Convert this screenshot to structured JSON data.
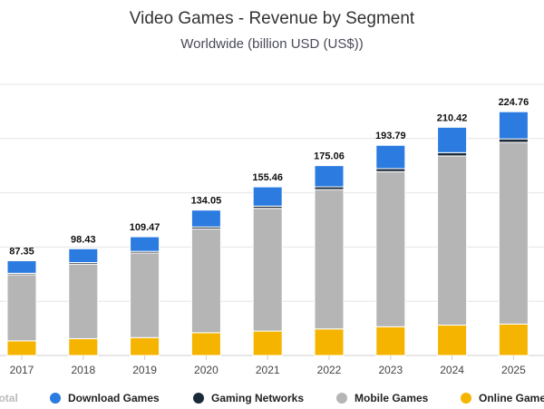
{
  "chart_data": {
    "type": "bar",
    "stacked": true,
    "title": "Video Games - Revenue by Segment",
    "subtitle": "Worldwide (billion USD (US$))",
    "categories": [
      "2017",
      "2018",
      "2019",
      "2020",
      "2021",
      "2022",
      "2023",
      "2024",
      "2025"
    ],
    "ylim": [
      0,
      250
    ],
    "grid": true,
    "legend_position": "bottom",
    "totals": [
      87.35,
      98.43,
      109.47,
      134.05,
      155.46,
      175.06,
      193.79,
      210.42,
      224.76
    ],
    "series": [
      {
        "name": "Online Games",
        "color": "#f5b400",
        "values": [
          13.5,
          15.5,
          16.5,
          21.0,
          22.5,
          24.5,
          26.5,
          28.0,
          29.0
        ]
      },
      {
        "name": "Mobile Games",
        "color": "#b5b5b5",
        "values": [
          61.0,
          68.8,
          78.0,
          95.7,
          113.2,
          128.5,
          143.0,
          156.0,
          167.5
        ]
      },
      {
        "name": "Gaming Networks",
        "color": "#1b2a3a",
        "values": [
          1.3,
          1.4,
          1.5,
          1.8,
          2.0,
          2.5,
          2.8,
          3.0,
          3.2
        ]
      },
      {
        "name": "Download Games",
        "color": "#2b7be0",
        "values": [
          11.55,
          12.73,
          13.47,
          15.55,
          17.76,
          19.56,
          21.49,
          23.42,
          25.06
        ]
      }
    ],
    "legend": [
      {
        "label": "Total",
        "active": false
      },
      {
        "label": "Download Games",
        "color": "#2b7be0",
        "active": true
      },
      {
        "label": "Gaming Networks",
        "color": "#1b2a3a",
        "active": true
      },
      {
        "label": "Mobile Games",
        "color": "#b5b5b5",
        "active": true
      },
      {
        "label": "Online Game",
        "color": "#f5b400",
        "active": true
      }
    ]
  }
}
